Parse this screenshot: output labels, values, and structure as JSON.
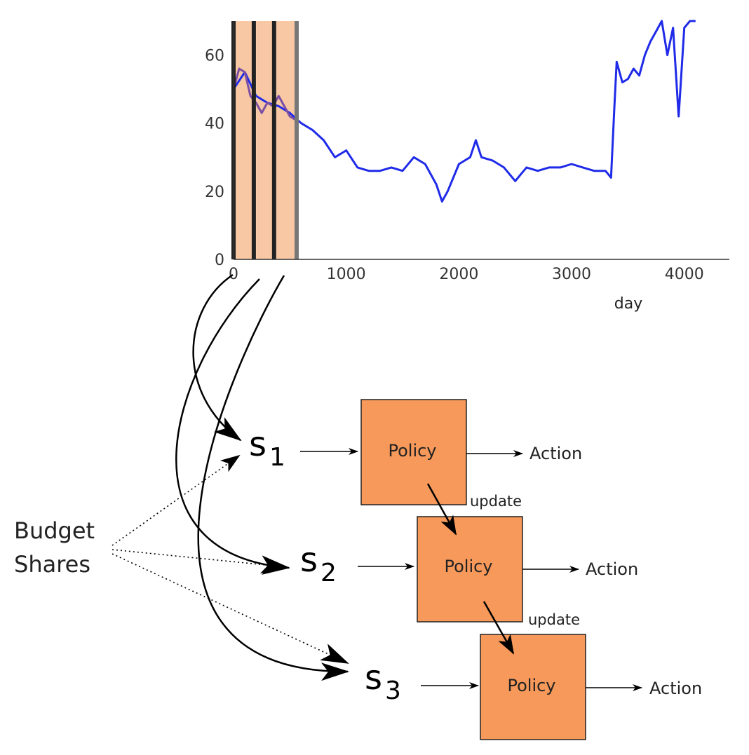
{
  "chart_data": {
    "type": "line",
    "xlabel": "day",
    "ylabel": "",
    "xlim": [
      0,
      4400
    ],
    "ylim": [
      0,
      70
    ],
    "x_ticks": [
      "0",
      "1000",
      "2000",
      "3000",
      "4000"
    ],
    "y_ticks": [
      "0",
      "20",
      "40",
      "60"
    ],
    "grid": false,
    "series": [
      {
        "color": "#1f2be8",
        "x": [
          0,
          100,
          200,
          300,
          400,
          500,
          600,
          700,
          800,
          900,
          1000,
          1100,
          1200,
          1300,
          1400,
          1500,
          1600,
          1700,
          1800,
          1850,
          1900,
          2000,
          2100,
          2150,
          2200,
          2300,
          2400,
          2500,
          2550,
          2600,
          2700,
          2800,
          2900,
          3000,
          3100,
          3200,
          3300,
          3350,
          3380,
          3400,
          3450,
          3500,
          3550,
          3600,
          3650,
          3700,
          3750,
          3800,
          3850,
          3900,
          3950,
          4000,
          4050,
          4100
        ],
        "y": [
          50,
          55,
          48,
          46,
          45,
          43,
          40,
          38,
          35,
          30,
          32,
          27,
          26,
          26,
          27,
          26,
          30,
          28,
          22,
          17,
          20,
          28,
          30,
          35,
          30,
          29,
          27,
          23,
          25,
          27,
          26,
          27,
          27,
          28,
          27,
          26,
          26,
          24,
          45,
          58,
          52,
          53,
          56,
          54,
          60,
          64,
          67,
          70,
          60,
          68,
          42,
          68,
          70,
          70
        ]
      },
      {
        "color": "#7b4fa3",
        "x": [
          0,
          50,
          100,
          150,
          200,
          250,
          300,
          350,
          400,
          450,
          500,
          550
        ],
        "y": [
          50,
          56,
          55,
          48,
          46,
          43,
          46,
          45,
          48,
          45,
          42,
          41
        ]
      }
    ],
    "highlight_windows": [
      {
        "x": [
          0,
          180
        ],
        "fill": "#f8c8a4"
      },
      {
        "x": [
          200,
          360
        ],
        "fill": "#f8c8a4"
      },
      {
        "x": [
          380,
          560
        ],
        "fill": "#f8c8a4"
      }
    ],
    "window_borders_x": [
      0,
      180,
      360,
      560
    ]
  },
  "diagram": {
    "states": [
      {
        "main": "s",
        "sub": "1"
      },
      {
        "main": "s",
        "sub": "2"
      },
      {
        "main": "s",
        "sub": "3"
      }
    ],
    "policy_label": "Policy",
    "action_label": "Action",
    "update_label": "update",
    "budget_line1": "Budget",
    "budget_line2": "Shares",
    "box_color": "#f7995a"
  }
}
